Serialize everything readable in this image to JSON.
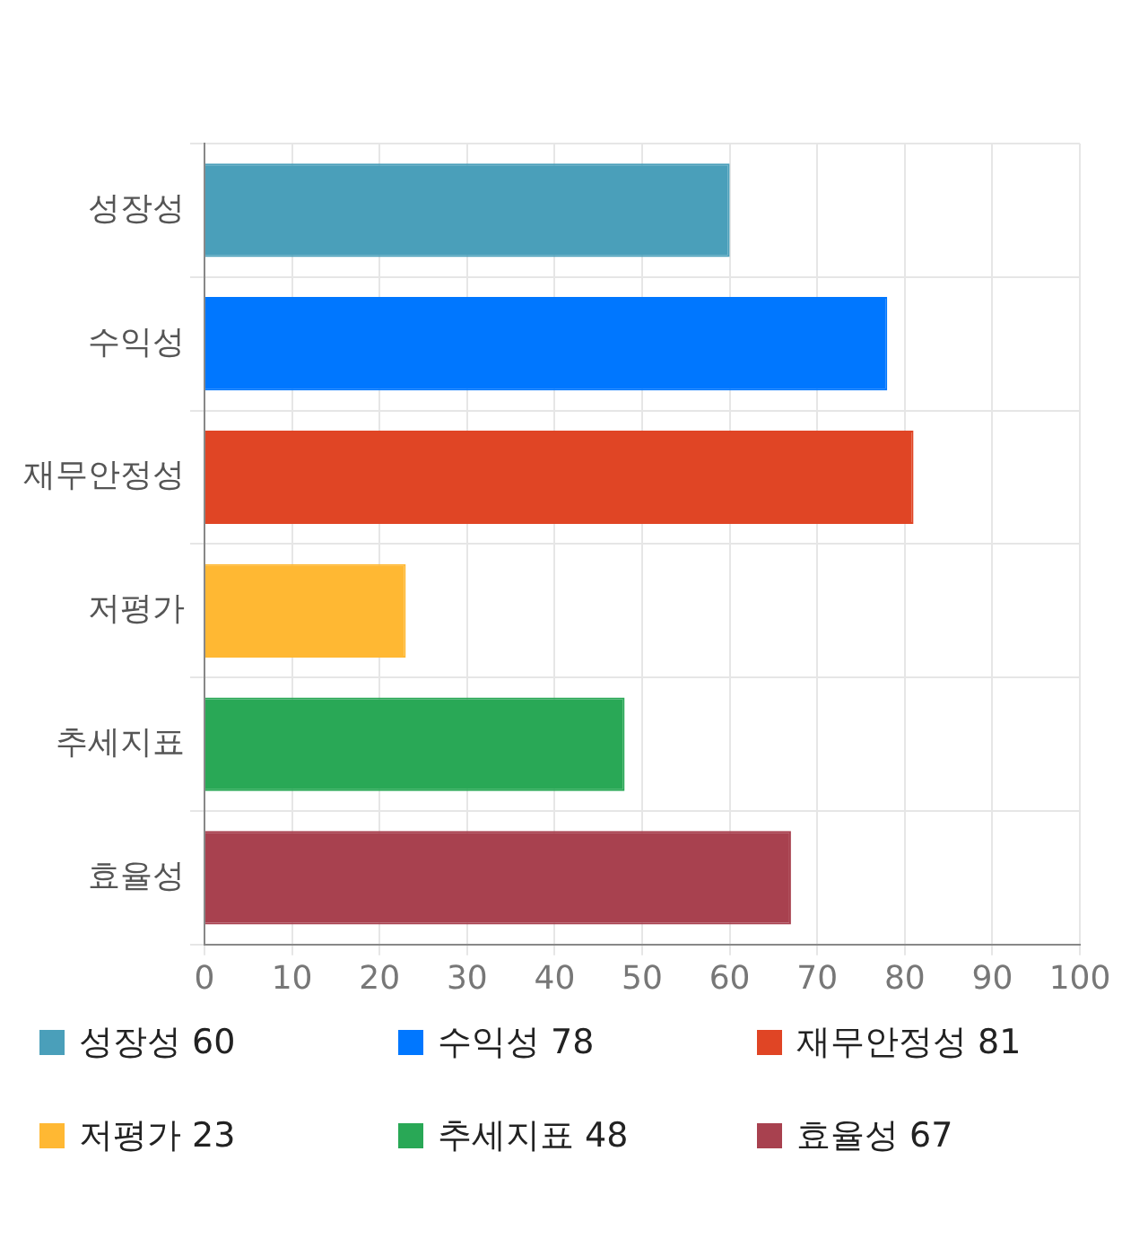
{
  "chart_data": {
    "type": "bar",
    "orientation": "horizontal",
    "categories": [
      "성장성",
      "수익성",
      "재무안정성",
      "저평가",
      "추세지표",
      "효율성"
    ],
    "values": [
      60,
      78,
      81,
      23,
      48,
      67
    ],
    "value_labels": [
      "60",
      "78",
      "81",
      "23",
      "48",
      "67"
    ],
    "colors": [
      "#4a9fba",
      "#0077ff",
      "#e04525",
      "#ffb833",
      "#29a856",
      "#a8414f"
    ],
    "xlim": [
      0,
      100
    ],
    "xticks": [
      0,
      10,
      20,
      30,
      40,
      50,
      60,
      70,
      80,
      90,
      100
    ],
    "grid": true
  }
}
